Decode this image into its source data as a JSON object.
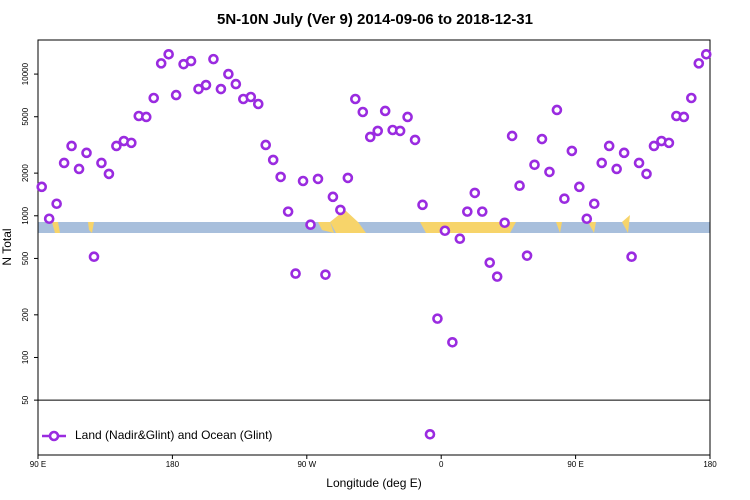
{
  "chart_data": {
    "type": "scatter",
    "title": "5N-10N July (Ver 9)   2014-09-06 to 2018-12-31",
    "x_label": "Longitude (deg E)",
    "y_label": "N Total",
    "log_y": true,
    "reference_line": 50,
    "xlim": [
      90,
      540
    ],
    "xticks": [
      {
        "value": 90,
        "label": "90 E"
      },
      {
        "value": 180,
        "label": "180"
      },
      {
        "value": 270,
        "label": "90 W"
      },
      {
        "value": 360,
        "label": "0"
      },
      {
        "value": 450,
        "label": "90 E"
      },
      {
        "value": 540,
        "label": "180"
      }
    ],
    "ylim": [
      20.5,
      17400
    ],
    "yticks": [
      50,
      100,
      200,
      500,
      1000,
      2000,
      5000,
      10000
    ],
    "series": [
      {
        "name": "Land (Nadir&Glint) and Ocean (Glint)",
        "color": "#9a2be0",
        "x": [
          92.5,
          97.5,
          102.5,
          107.5,
          112.5,
          117.5,
          122.5,
          127.5,
          132.5,
          137.5,
          142.5,
          147.5,
          152.5,
          157.5,
          162.5,
          167.5,
          172.5,
          177.5,
          182.5,
          187.5,
          192.5,
          197.5,
          202.5,
          207.5,
          212.5,
          217.5,
          222.5,
          227.5,
          232.5,
          237.5,
          242.5,
          247.5,
          252.5,
          257.5,
          262.5,
          267.5,
          272.5,
          277.5,
          282.5,
          287.5,
          292.5,
          297.5,
          302.5,
          307.5,
          312.5,
          317.5,
          322.5,
          327.5,
          332.5,
          337.5,
          342.5,
          347.5,
          352.5,
          357.5,
          362.5,
          367.5,
          372.5,
          377.5,
          382.5,
          387.5,
          392.5,
          397.5,
          402.5,
          407.5,
          412.5,
          417.5,
          422.5,
          427.5,
          432.5,
          437.5,
          442.5,
          447.5,
          452.5,
          457.5,
          462.5,
          467.5,
          472.5,
          477.5,
          482.5,
          487.5,
          492.5,
          497.5,
          502.5,
          507.5,
          512.5,
          517.5,
          522.5,
          527.5,
          532.5,
          537.5
        ],
        "values": [
          1600,
          953,
          1216,
          2360,
          3110,
          2140,
          2780,
          514,
          2360,
          1975,
          3110,
          3370,
          3270,
          5060,
          4980,
          6780,
          11900,
          13800,
          7110,
          11750,
          12350,
          7840,
          8370,
          12750,
          7840,
          10000,
          8500,
          6670,
          6890,
          6150,
          3160,
          2480,
          1880,
          1070,
          391,
          1760,
          865,
          1820,
          384,
          1360,
          1100,
          1850,
          6670,
          5400,
          3600,
          3970,
          5490,
          4030,
          3970,
          4980,
          3430,
          1195,
          28.7,
          188,
          784,
          128,
          689,
          1070,
          1450,
          1070,
          467,
          372,
          893,
          3660,
          1630,
          523,
          2290,
          3480,
          2040,
          5580,
          1320,
          2870,
          1600,
          953,
          1216,
          2360,
          3110,
          2140,
          2780,
          514,
          2360,
          1975,
          3110,
          3370,
          3270,
          5060,
          4980,
          6780,
          11900,
          13800
        ]
      }
    ]
  }
}
